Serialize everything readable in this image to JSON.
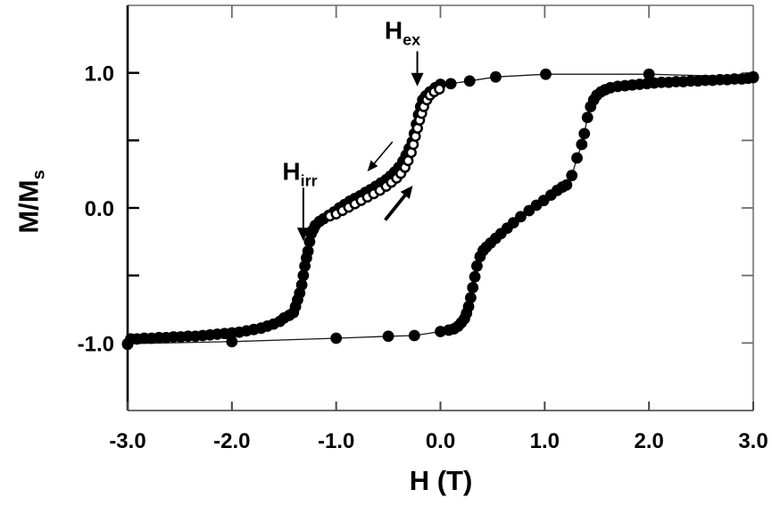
{
  "figure": {
    "background": "#ffffff",
    "ink_color": "#000000",
    "frame_color": "#6b6b6b",
    "data_line_color": "#1a1a1a"
  },
  "chart_data": {
    "type": "scatter",
    "title": "",
    "xlabel": "H (T)",
    "ylabel": "M/Ms",
    "labels": {
      "xlabel": "H (T)",
      "ylabel_main": "M/M",
      "ylabel_sub": "s"
    },
    "xlim": [
      -3.0,
      3.0
    ],
    "ylim": [
      -1.5,
      1.5
    ],
    "grid": false,
    "legend": null,
    "x_ticks": [
      -3,
      -2,
      -1,
      0,
      1,
      2,
      3
    ],
    "x_tick_labels": [
      "-3.0",
      "-2.0",
      "-1.0",
      "0.0",
      "1.0",
      "2.0",
      "3.0"
    ],
    "x_ticks_top": [
      -2,
      -1,
      0,
      1,
      2
    ],
    "y_ticks": [
      -1,
      -0.5,
      0,
      0.5,
      1
    ],
    "y_tick_major": [
      -1,
      0,
      1
    ],
    "y_tick_labels": [
      "-1.0",
      "0.0",
      "1.0"
    ],
    "series": [
      {
        "name": "descending-branch",
        "marker": "filled-circle",
        "line": true,
        "color": "#000000",
        "points": [
          [
            3.0,
            0.97
          ],
          [
            2.0,
            0.99
          ],
          [
            1.01,
            0.99
          ],
          [
            0.53,
            0.97
          ],
          [
            0.28,
            0.94
          ],
          [
            0.1,
            0.92
          ],
          [
            0.0,
            0.915
          ],
          [
            -0.05,
            0.89
          ],
          [
            -0.1,
            0.86
          ],
          [
            -0.14,
            0.83
          ],
          [
            -0.17,
            0.8
          ],
          [
            -0.19,
            0.75
          ],
          [
            -0.21,
            0.69
          ],
          [
            -0.23,
            0.62
          ],
          [
            -0.25,
            0.55
          ],
          [
            -0.27,
            0.49
          ],
          [
            -0.3,
            0.44
          ],
          [
            -0.33,
            0.39
          ],
          [
            -0.36,
            0.345
          ],
          [
            -0.4,
            0.3
          ],
          [
            -0.44,
            0.265
          ],
          [
            -0.48,
            0.235
          ],
          [
            -0.52,
            0.21
          ],
          [
            -0.57,
            0.185
          ],
          [
            -0.62,
            0.16
          ],
          [
            -0.67,
            0.135
          ],
          [
            -0.72,
            0.115
          ],
          [
            -0.77,
            0.09
          ],
          [
            -0.82,
            0.07
          ],
          [
            -0.87,
            0.05
          ],
          [
            -0.92,
            0.025
          ],
          [
            -0.97,
            0.0
          ],
          [
            -1.02,
            -0.03
          ],
          [
            -1.07,
            -0.055
          ],
          [
            -1.12,
            -0.08
          ],
          [
            -1.16,
            -0.1
          ],
          [
            -1.2,
            -0.13
          ],
          [
            -1.22,
            -0.16
          ],
          [
            -1.24,
            -0.19
          ],
          [
            -1.255,
            -0.25
          ],
          [
            -1.27,
            -0.32
          ],
          [
            -1.285,
            -0.37
          ],
          [
            -1.3,
            -0.43
          ],
          [
            -1.315,
            -0.5
          ],
          [
            -1.33,
            -0.57
          ],
          [
            -1.35,
            -0.63
          ],
          [
            -1.37,
            -0.68
          ],
          [
            -1.39,
            -0.73
          ],
          [
            -1.41,
            -0.775
          ],
          [
            -1.45,
            -0.795
          ],
          [
            -1.5,
            -0.815
          ],
          [
            -1.54,
            -0.84
          ],
          [
            -1.6,
            -0.86
          ],
          [
            -1.66,
            -0.875
          ],
          [
            -1.72,
            -0.89
          ],
          [
            -1.79,
            -0.9
          ],
          [
            -1.86,
            -0.91
          ],
          [
            -1.93,
            -0.92
          ],
          [
            -2.0,
            -0.925
          ],
          [
            -2.07,
            -0.93
          ],
          [
            -2.14,
            -0.935
          ],
          [
            -2.21,
            -0.94
          ],
          [
            -2.28,
            -0.945
          ],
          [
            -2.35,
            -0.95
          ],
          [
            -2.42,
            -0.95
          ],
          [
            -2.49,
            -0.955
          ],
          [
            -2.56,
            -0.955
          ],
          [
            -2.63,
            -0.96
          ],
          [
            -2.7,
            -0.96
          ],
          [
            -2.77,
            -0.965
          ],
          [
            -2.84,
            -0.965
          ],
          [
            -2.91,
            -0.97
          ],
          [
            -2.97,
            -0.97
          ],
          [
            -3.0,
            -1.01
          ]
        ]
      },
      {
        "name": "ascending-branch",
        "marker": "filled-circle",
        "line": true,
        "color": "#000000",
        "points": [
          [
            -3.0,
            -1.005
          ],
          [
            -2.0,
            -0.99
          ],
          [
            -1.0,
            -0.965
          ],
          [
            -0.5,
            -0.95
          ],
          [
            -0.25,
            -0.945
          ],
          [
            0.0,
            -0.915
          ],
          [
            0.08,
            -0.905
          ],
          [
            0.13,
            -0.895
          ],
          [
            0.17,
            -0.875
          ],
          [
            0.2,
            -0.85
          ],
          [
            0.23,
            -0.82
          ],
          [
            0.25,
            -0.78
          ],
          [
            0.27,
            -0.73
          ],
          [
            0.29,
            -0.665
          ],
          [
            0.31,
            -0.59
          ],
          [
            0.33,
            -0.51
          ],
          [
            0.35,
            -0.43
          ],
          [
            0.38,
            -0.36
          ],
          [
            0.41,
            -0.315
          ],
          [
            0.44,
            -0.29
          ],
          [
            0.48,
            -0.26
          ],
          [
            0.53,
            -0.225
          ],
          [
            0.58,
            -0.19
          ],
          [
            0.64,
            -0.15
          ],
          [
            0.7,
            -0.11
          ],
          [
            0.77,
            -0.065
          ],
          [
            0.85,
            -0.02
          ],
          [
            0.92,
            0.02
          ],
          [
            0.99,
            0.055
          ],
          [
            1.06,
            0.095
          ],
          [
            1.12,
            0.13
          ],
          [
            1.17,
            0.155
          ],
          [
            1.21,
            0.17
          ],
          [
            1.26,
            0.24
          ],
          [
            1.31,
            0.37
          ],
          [
            1.355,
            0.47
          ],
          [
            1.38,
            0.55
          ],
          [
            1.41,
            0.67
          ],
          [
            1.44,
            0.75
          ],
          [
            1.47,
            0.8
          ],
          [
            1.5,
            0.835
          ],
          [
            1.54,
            0.86
          ],
          [
            1.58,
            0.875
          ],
          [
            1.63,
            0.89
          ],
          [
            1.7,
            0.9
          ],
          [
            1.77,
            0.905
          ],
          [
            1.84,
            0.91
          ],
          [
            1.91,
            0.915
          ],
          [
            1.98,
            0.92
          ],
          [
            2.05,
            0.925
          ],
          [
            2.12,
            0.93
          ],
          [
            2.19,
            0.93
          ],
          [
            2.26,
            0.935
          ],
          [
            2.33,
            0.935
          ],
          [
            2.4,
            0.94
          ],
          [
            2.47,
            0.94
          ],
          [
            2.54,
            0.945
          ],
          [
            2.61,
            0.945
          ],
          [
            2.68,
            0.95
          ],
          [
            2.75,
            0.95
          ],
          [
            2.82,
            0.955
          ],
          [
            2.89,
            0.955
          ],
          [
            2.95,
            0.96
          ],
          [
            3.0,
            0.965
          ]
        ]
      },
      {
        "name": "recoil-curve-open-symbols",
        "marker": "open-circle",
        "line": false,
        "color": "#000000",
        "points": [
          [
            -1.06,
            -0.06
          ],
          [
            -1.0,
            -0.045
          ],
          [
            -0.94,
            -0.02
          ],
          [
            -0.88,
            0.005
          ],
          [
            -0.82,
            0.03
          ],
          [
            -0.76,
            0.055
          ],
          [
            -0.7,
            0.08
          ],
          [
            -0.64,
            0.105
          ],
          [
            -0.58,
            0.13
          ],
          [
            -0.52,
            0.16
          ],
          [
            -0.47,
            0.19
          ],
          [
            -0.42,
            0.22
          ],
          [
            -0.38,
            0.255
          ],
          [
            -0.34,
            0.3
          ],
          [
            -0.31,
            0.35
          ],
          [
            -0.28,
            0.41
          ],
          [
            -0.26,
            0.47
          ],
          [
            -0.24,
            0.53
          ],
          [
            -0.22,
            0.59
          ],
          [
            -0.2,
            0.65
          ],
          [
            -0.18,
            0.7
          ],
          [
            -0.16,
            0.75
          ],
          [
            -0.13,
            0.8
          ],
          [
            -0.1,
            0.835
          ],
          [
            -0.06,
            0.86
          ],
          [
            -0.01,
            0.88
          ]
        ]
      }
    ],
    "annotations": {
      "hex": {
        "main": "H",
        "sub": "ex",
        "label_x": -0.364,
        "label_y": 1.295,
        "arrow": {
          "x1": -0.222,
          "y1": 1.16,
          "x2": -0.222,
          "y2": 0.9,
          "width": 2,
          "head_l": 15,
          "head_w": 7
        }
      },
      "hirr": {
        "main": "H",
        "sub": "irr",
        "label_x": -1.348,
        "label_y": 0.251,
        "arrow": {
          "x1": -1.315,
          "y1": 0.15,
          "x2": -1.315,
          "y2": -0.245,
          "width": 2,
          "head_l": 15,
          "head_w": 7
        }
      },
      "direction_arrows": [
        {
          "name": "decreasing-field-arrow",
          "x1": -0.46,
          "y1": 0.49,
          "x2": -0.7,
          "y2": 0.27,
          "width": 1.6,
          "head_l": 12,
          "head_w": 5.2
        },
        {
          "name": "increasing-field-arrow",
          "x1": -0.53,
          "y1": -0.09,
          "x2": -0.265,
          "y2": 0.165,
          "width": 3.8,
          "head_l": 14,
          "head_w": 6.5
        }
      ]
    }
  }
}
